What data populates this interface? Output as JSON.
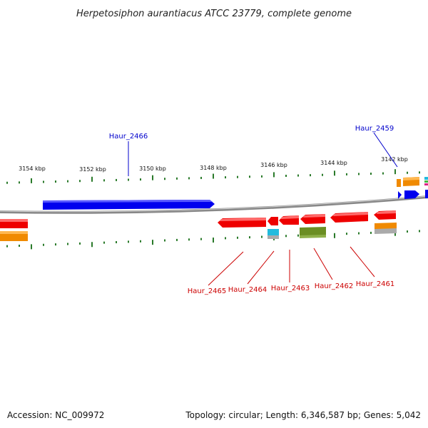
{
  "title": "Herpetosiphon aurantiacus ATCC 23779, complete genome",
  "footer": {
    "accession": "Accession: NC_009972",
    "summary": "Topology: circular; Length: 6,346,587 bp; Genes: 5,042"
  },
  "ruler_labels": [
    "3154 kbp",
    "3152 kbp",
    "3150 kbp",
    "3148 kbp",
    "3146 kbp",
    "3144 kbp",
    "3142 kbp"
  ],
  "genes_top": [
    {
      "name": "Haur_2466",
      "color": "#0000cc"
    },
    {
      "name": "Haur_2459",
      "color": "#0000cc"
    }
  ],
  "genes_bottom": [
    {
      "name": "Haur_2465",
      "color": "#cc0000"
    },
    {
      "name": "Haur_2464",
      "color": "#cc0000"
    },
    {
      "name": "Haur_2463",
      "color": "#cc0000"
    },
    {
      "name": "Haur_2462",
      "color": "#cc0000"
    },
    {
      "name": "Haur_2461",
      "color": "#cc0000"
    }
  ],
  "colors": {
    "backbone": "#888888",
    "tick": "#2a7a2a",
    "forward": "#0000ee",
    "reverse": "#ee0000",
    "orange": "#f08a00",
    "olive": "#6b8e23",
    "cyan": "#22bbdd",
    "grey": "#aaaaaa"
  }
}
